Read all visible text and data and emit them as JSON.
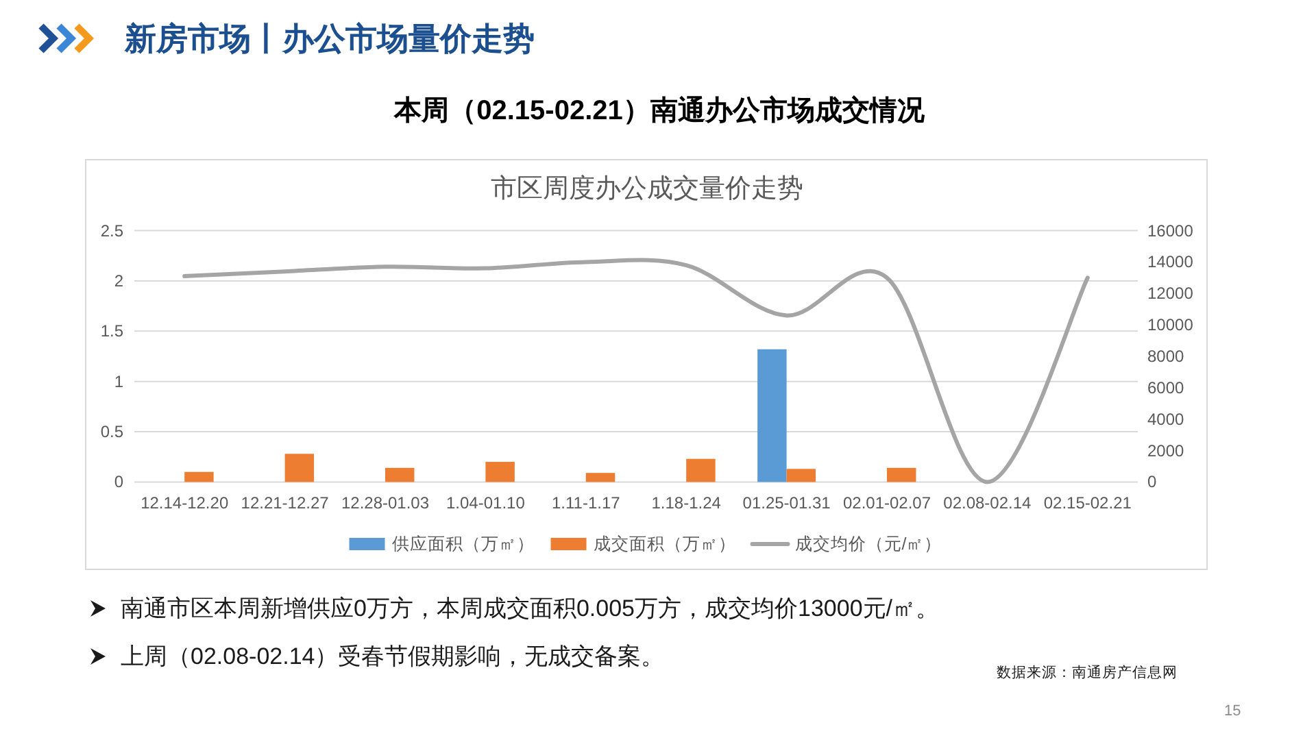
{
  "chart_data": {
    "type": "bar",
    "title": "市区周度办公成交量价走势",
    "subtitle": "本周（02.15-02.21）南通办公市场成交情况",
    "categories": [
      "12.14-12.20",
      "12.21-12.27",
      "12.28-01.03",
      "1.04-01.10",
      "1.11-1.17",
      "1.18-1.24",
      "01.25-01.31",
      "02.01-02.07",
      "02.08-02.14",
      "02.15-02.21"
    ],
    "series": [
      {
        "name": "供应面积（万㎡）",
        "color": "#5b9bd5",
        "values": [
          null,
          null,
          null,
          null,
          null,
          null,
          1.32,
          null,
          null,
          null
        ]
      },
      {
        "name": "成交面积（万㎡）",
        "color": "#ed7d31",
        "values": [
          0.1,
          0.28,
          0.14,
          0.2,
          0.09,
          0.23,
          0.13,
          0.14,
          null,
          null
        ]
      },
      {
        "name": "成交均价（元/㎡）",
        "type": "line",
        "axis": "y2",
        "color": "#a5a5a5",
        "values": [
          13100,
          13400,
          13700,
          13600,
          14000,
          13800,
          10600,
          13000,
          0,
          13000
        ]
      }
    ],
    "ylim": [
      0,
      2.5
    ],
    "yticks": [
      0,
      0.5,
      1,
      1.5,
      2,
      2.5
    ],
    "y2lim": [
      0,
      16000
    ],
    "y2ticks": [
      0,
      2000,
      4000,
      6000,
      8000,
      10000,
      12000,
      14000,
      16000
    ],
    "grid": "y",
    "legend": "bottom",
    "annotations": [
      "新房市场丨办公市场量价走势",
      "南通市区本周新增供应0万方，本周成交面积0.005万方，成交均价13000元/㎡。",
      "上周（02.08-02.14）受春节假期影响，无成交备案。",
      "数据来源：南通房产信息网",
      "15"
    ]
  }
}
